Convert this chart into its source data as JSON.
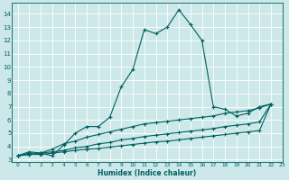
{
  "xlabel": "Humidex (Indice chaleur)",
  "xlim": [
    -0.5,
    23
  ],
  "ylim": [
    2.8,
    14.8
  ],
  "yticks": [
    3,
    4,
    5,
    6,
    7,
    8,
    9,
    10,
    11,
    12,
    13,
    14
  ],
  "xticks": [
    0,
    1,
    2,
    3,
    4,
    5,
    6,
    7,
    8,
    9,
    10,
    11,
    12,
    13,
    14,
    15,
    16,
    17,
    18,
    19,
    20,
    21,
    22,
    23
  ],
  "bg_color": "#cce8e8",
  "grid_color": "#ffffff",
  "line_color": "#006060",
  "series1": [
    [
      0,
      3.3
    ],
    [
      1,
      3.6
    ],
    [
      2,
      3.5
    ],
    [
      3,
      3.3
    ],
    [
      4,
      4.1
    ],
    [
      5,
      5.0
    ],
    [
      6,
      5.5
    ],
    [
      7,
      5.5
    ],
    [
      8,
      6.2
    ],
    [
      9,
      8.5
    ],
    [
      10,
      9.8
    ],
    [
      11,
      12.8
    ],
    [
      12,
      12.5
    ],
    [
      13,
      13.0
    ],
    [
      14,
      14.3
    ],
    [
      15,
      13.2
    ],
    [
      16,
      12.0
    ],
    [
      17,
      7.0
    ],
    [
      18,
      6.8
    ],
    [
      19,
      6.3
    ],
    [
      20,
      6.5
    ],
    [
      21,
      7.0
    ],
    [
      22,
      7.2
    ]
  ],
  "series2": [
    [
      0,
      3.3
    ],
    [
      1,
      3.5
    ],
    [
      2,
      3.5
    ],
    [
      3,
      3.8
    ],
    [
      4,
      4.2
    ],
    [
      5,
      4.4
    ],
    [
      6,
      4.7
    ],
    [
      7,
      4.9
    ],
    [
      8,
      5.1
    ],
    [
      9,
      5.3
    ],
    [
      10,
      5.5
    ],
    [
      11,
      5.7
    ],
    [
      12,
      5.8
    ],
    [
      13,
      5.9
    ],
    [
      14,
      6.0
    ],
    [
      15,
      6.1
    ],
    [
      16,
      6.2
    ],
    [
      17,
      6.3
    ],
    [
      18,
      6.5
    ],
    [
      19,
      6.6
    ],
    [
      20,
      6.7
    ],
    [
      21,
      6.9
    ],
    [
      22,
      7.2
    ]
  ],
  "series3": [
    [
      0,
      3.3
    ],
    [
      1,
      3.4
    ],
    [
      2,
      3.5
    ],
    [
      3,
      3.6
    ],
    [
      4,
      3.7
    ],
    [
      5,
      3.9
    ],
    [
      6,
      4.0
    ],
    [
      7,
      4.2
    ],
    [
      8,
      4.3
    ],
    [
      9,
      4.5
    ],
    [
      10,
      4.6
    ],
    [
      11,
      4.75
    ],
    [
      12,
      4.85
    ],
    [
      13,
      4.95
    ],
    [
      14,
      5.05
    ],
    [
      15,
      5.15
    ],
    [
      16,
      5.25
    ],
    [
      17,
      5.35
    ],
    [
      18,
      5.5
    ],
    [
      19,
      5.6
    ],
    [
      20,
      5.7
    ],
    [
      21,
      5.85
    ],
    [
      22,
      7.2
    ]
  ],
  "series4": [
    [
      0,
      3.3
    ],
    [
      1,
      3.4
    ],
    [
      2,
      3.4
    ],
    [
      3,
      3.5
    ],
    [
      4,
      3.6
    ],
    [
      5,
      3.7
    ],
    [
      6,
      3.8
    ],
    [
      7,
      3.85
    ],
    [
      8,
      3.95
    ],
    [
      9,
      4.05
    ],
    [
      10,
      4.15
    ],
    [
      11,
      4.25
    ],
    [
      12,
      4.35
    ],
    [
      13,
      4.4
    ],
    [
      14,
      4.5
    ],
    [
      15,
      4.6
    ],
    [
      16,
      4.7
    ],
    [
      17,
      4.8
    ],
    [
      18,
      4.9
    ],
    [
      19,
      5.0
    ],
    [
      20,
      5.1
    ],
    [
      21,
      5.2
    ],
    [
      22,
      7.2
    ]
  ]
}
